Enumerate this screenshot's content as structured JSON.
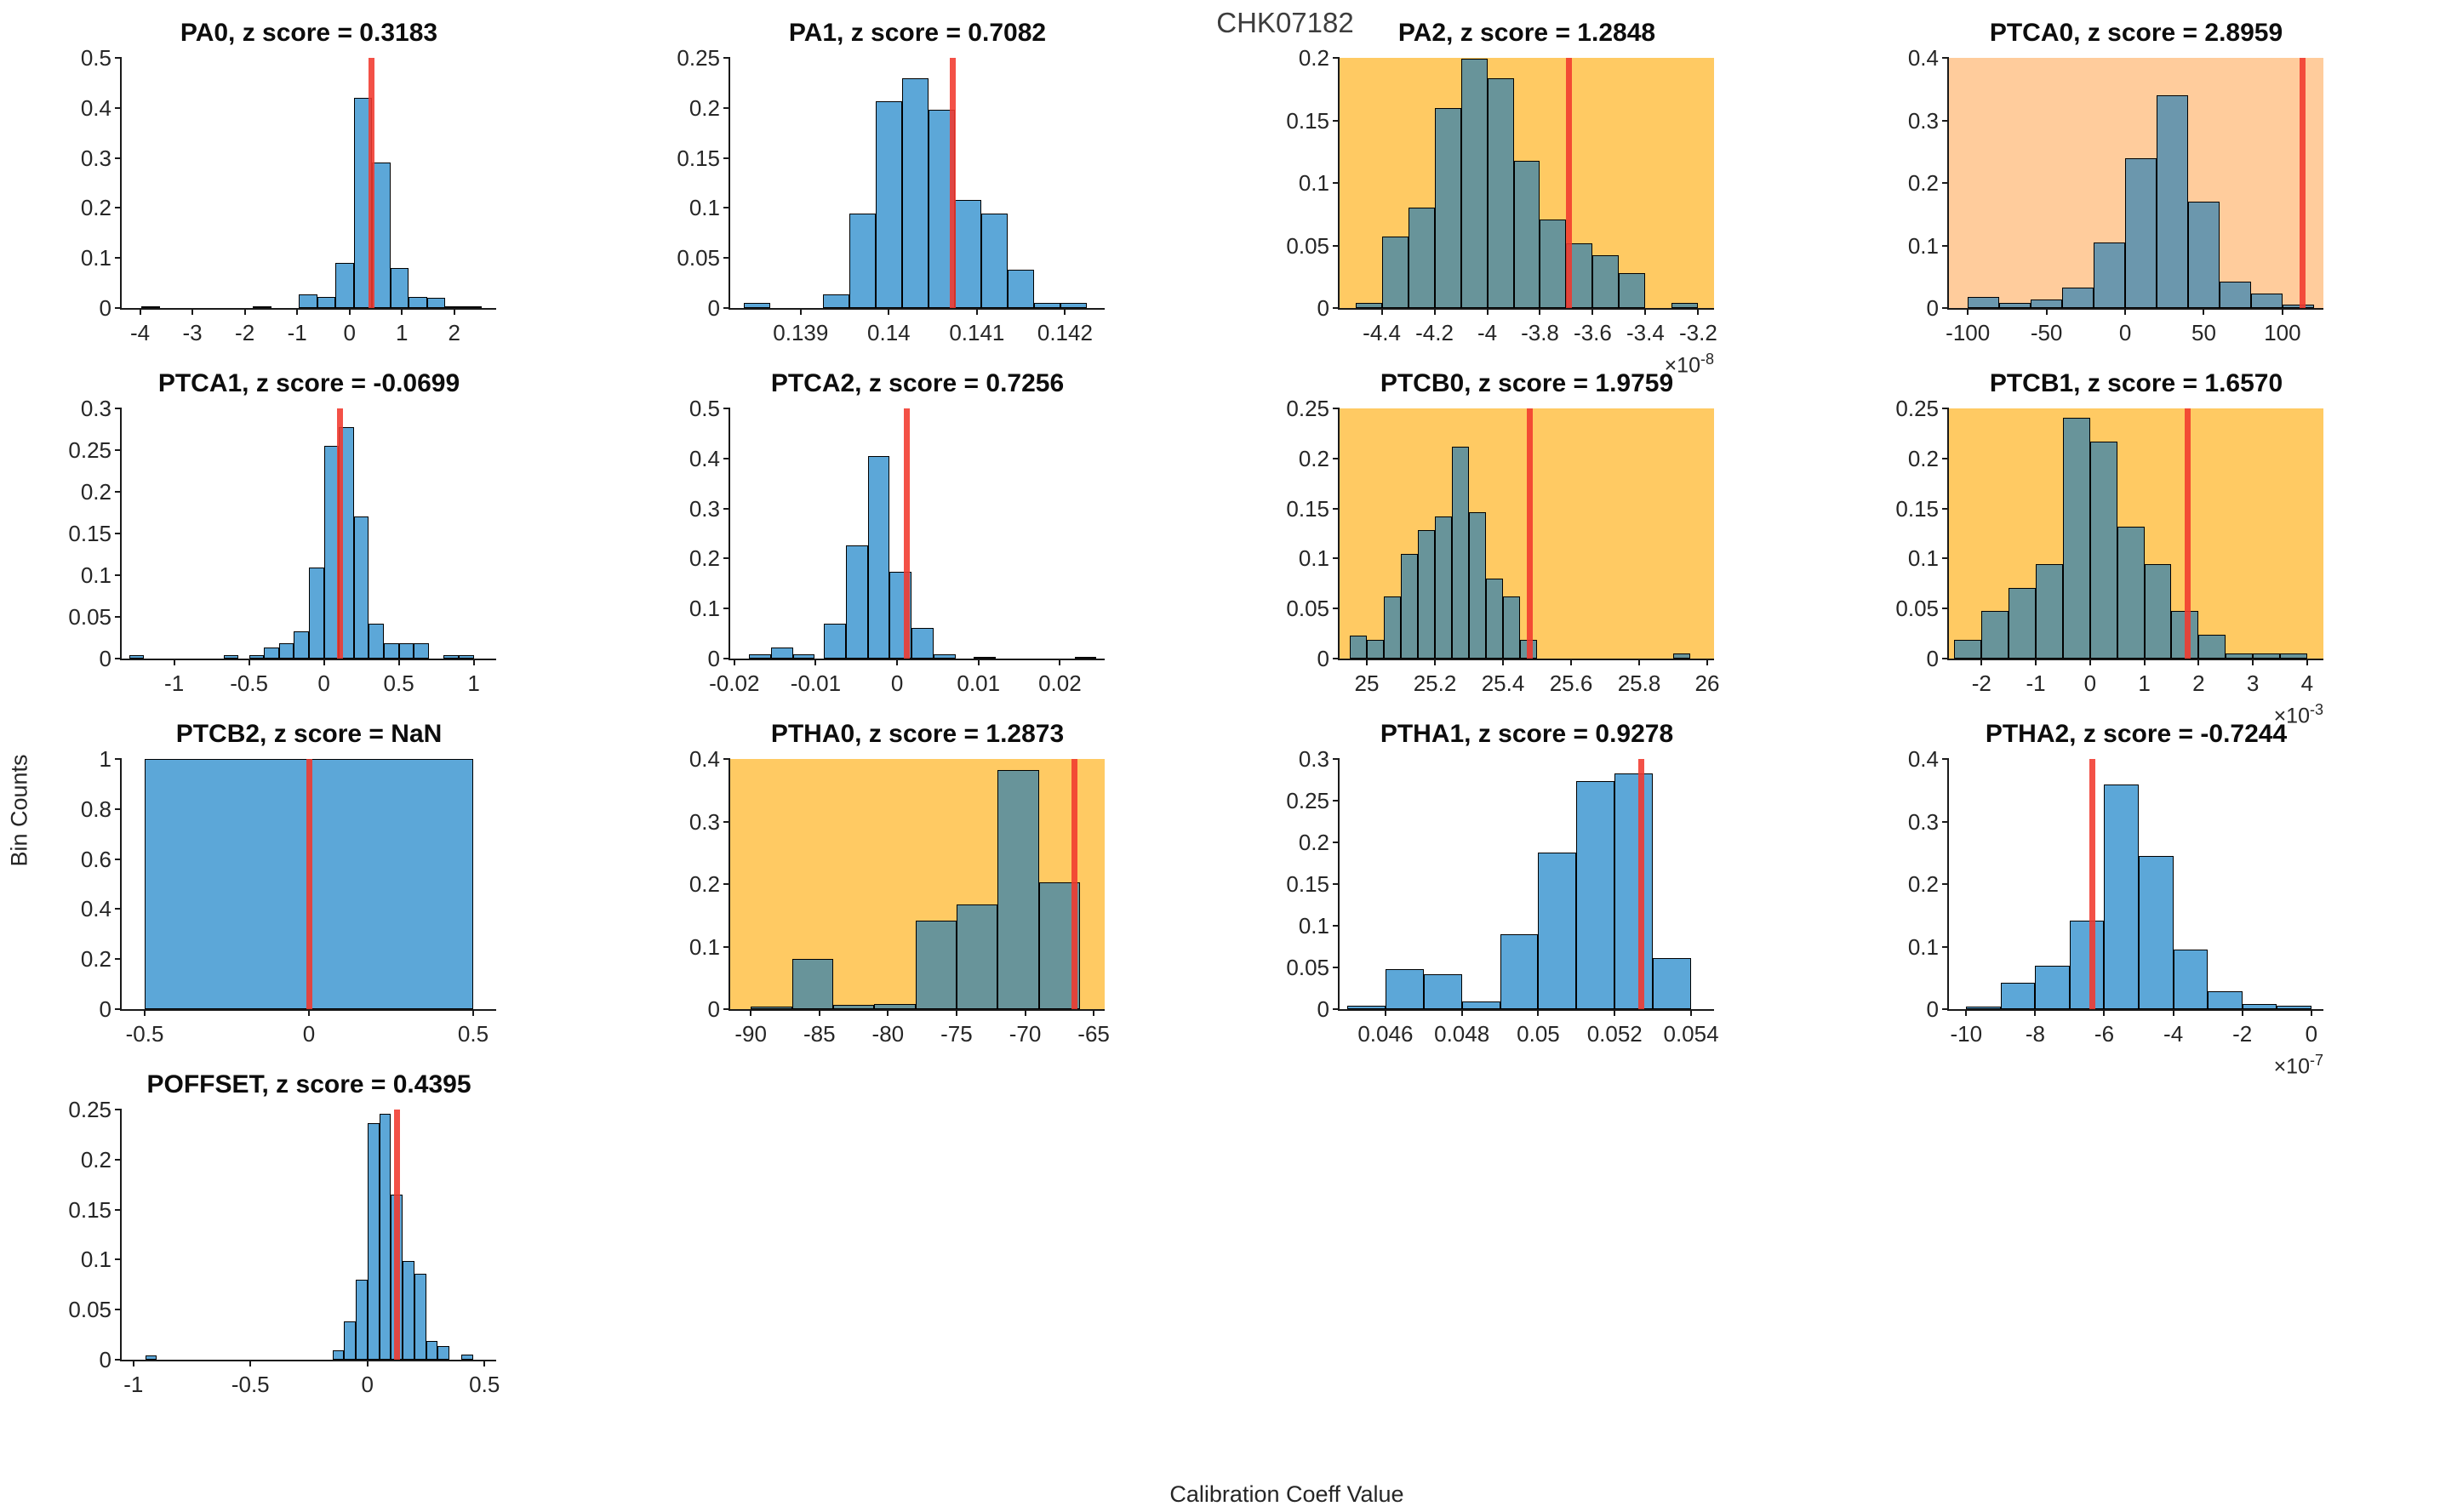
{
  "figure": {
    "suptitle": "CHK07182",
    "ylabel": "Bin Counts",
    "xlabel": "Calibration Coeff Value"
  },
  "colors": {
    "bar_blue": "#5CA7D8",
    "bar_on_yellow": "#68949A",
    "bar_on_peach": "#6B97AD",
    "bg_yellow": "#FFCA63",
    "bg_peach": "#FFCC9C",
    "red_line": "#F1392D",
    "spine": "#1A1A1A",
    "tick_text": "#262626"
  },
  "chart_data": [
    {
      "type": "histogram",
      "name": "PA0",
      "title": "PA0, z score = 0.3183",
      "z_score": "0.3183",
      "highlight": "none",
      "xlim": [
        -4.35,
        2.8
      ],
      "ylim": [
        0,
        0.5
      ],
      "xtick_vals": [
        -4,
        -3,
        -2,
        -1,
        0,
        1,
        2
      ],
      "xtick_labels": [
        "-4",
        "-3",
        "-2",
        "-1",
        "0",
        "1",
        "2"
      ],
      "ytick_vals": [
        0,
        0.1,
        0.2,
        0.3,
        0.4,
        0.5
      ],
      "ytick_labels": [
        "0",
        "0.1",
        "0.2",
        "0.3",
        "0.4",
        "0.5"
      ],
      "exp": "",
      "red_x": 0.42,
      "bars": [
        [
          -3.98,
          0.36,
          0.004
        ],
        [
          -1.85,
          0.36,
          0.004
        ],
        [
          -0.97,
          0.35,
          0.028
        ],
        [
          -0.62,
          0.35,
          0.022
        ],
        [
          -0.27,
          0.35,
          0.09
        ],
        [
          0.08,
          0.35,
          0.42
        ],
        [
          0.43,
          0.35,
          0.29
        ],
        [
          0.78,
          0.35,
          0.08
        ],
        [
          1.13,
          0.35,
          0.022
        ],
        [
          1.48,
          0.35,
          0.02
        ],
        [
          1.83,
          0.35,
          0.004
        ],
        [
          2.18,
          0.35,
          0.004
        ]
      ]
    },
    {
      "type": "histogram",
      "name": "PA1",
      "title": "PA1, z score = 0.7082",
      "z_score": "0.7082",
      "highlight": "none",
      "xlim": [
        0.1382,
        0.14245
      ],
      "ylim": [
        0,
        0.25
      ],
      "xtick_vals": [
        0.139,
        0.14,
        0.141,
        0.142
      ],
      "xtick_labels": [
        "0.139",
        "0.14",
        "0.141",
        "0.142"
      ],
      "ytick_vals": [
        0,
        0.05,
        0.1,
        0.15,
        0.2,
        0.25
      ],
      "ytick_labels": [
        "0",
        "0.05",
        "0.1",
        "0.15",
        "0.2",
        "0.25"
      ],
      "exp": "",
      "red_x": 0.14073,
      "bars": [
        [
          0.13835,
          0.0003,
          0.005
        ],
        [
          0.13925,
          0.0003,
          0.014
        ],
        [
          0.13955,
          0.0003,
          0.094
        ],
        [
          0.13985,
          0.0003,
          0.207
        ],
        [
          0.14015,
          0.0003,
          0.23
        ],
        [
          0.14045,
          0.0003,
          0.198
        ],
        [
          0.14075,
          0.0003,
          0.108
        ],
        [
          0.14105,
          0.0003,
          0.094
        ],
        [
          0.14135,
          0.0003,
          0.038
        ],
        [
          0.14165,
          0.0003,
          0.005
        ],
        [
          0.14195,
          0.0003,
          0.005
        ]
      ]
    },
    {
      "type": "histogram",
      "name": "PA2",
      "title": "PA2, z score = 1.2848",
      "z_score": "1.2848",
      "highlight": "yellow",
      "xlim": [
        -4.56,
        -3.14
      ],
      "ylim": [
        0,
        0.2
      ],
      "xtick_vals": [
        -4.4,
        -4.2,
        -4,
        -3.8,
        -3.6,
        -3.4,
        -3.2
      ],
      "xtick_labels": [
        "-4.4",
        "-4.2",
        "-4",
        "-3.8",
        "-3.6",
        "-3.4",
        "-3.2"
      ],
      "ytick_vals": [
        0,
        0.05,
        0.1,
        0.15,
        0.2
      ],
      "ytick_labels": [
        "0",
        "0.05",
        "0.1",
        "0.15",
        "0.2"
      ],
      "exp": "-8",
      "red_x": -3.69,
      "bars": [
        [
          -4.5,
          0.1,
          0.004
        ],
        [
          -4.4,
          0.1,
          0.057
        ],
        [
          -4.3,
          0.1,
          0.08
        ],
        [
          -4.2,
          0.1,
          0.16
        ],
        [
          -4.1,
          0.1,
          0.199
        ],
        [
          -4.0,
          0.1,
          0.184
        ],
        [
          -3.9,
          0.1,
          0.118
        ],
        [
          -3.8,
          0.1,
          0.071
        ],
        [
          -3.7,
          0.1,
          0.052
        ],
        [
          -3.6,
          0.1,
          0.042
        ],
        [
          -3.5,
          0.1,
          0.028
        ],
        [
          -3.3,
          0.1,
          0.004
        ]
      ]
    },
    {
      "type": "histogram",
      "name": "PTCA0",
      "title": "PTCA0, z score = 2.8959",
      "z_score": "2.8959",
      "highlight": "peach",
      "xlim": [
        -112,
        126
      ],
      "ylim": [
        0,
        0.4
      ],
      "xtick_vals": [
        -100,
        -50,
        0,
        50,
        100
      ],
      "xtick_labels": [
        "-100",
        "-50",
        "0",
        "50",
        "100"
      ],
      "ytick_vals": [
        0,
        0.1,
        0.2,
        0.3,
        0.4
      ],
      "ytick_labels": [
        "0",
        "0.1",
        "0.2",
        "0.3",
        "0.4"
      ],
      "exp": "",
      "red_x": 113,
      "bars": [
        [
          -100,
          20,
          0.018
        ],
        [
          -80,
          20,
          0.008
        ],
        [
          -60,
          20,
          0.013
        ],
        [
          -40,
          20,
          0.032
        ],
        [
          -20,
          20,
          0.105
        ],
        [
          0,
          20,
          0.24
        ],
        [
          20,
          20,
          0.34
        ],
        [
          40,
          20,
          0.17
        ],
        [
          60,
          20,
          0.042
        ],
        [
          80,
          20,
          0.023
        ],
        [
          100,
          20,
          0.005
        ]
      ]
    },
    {
      "type": "histogram",
      "name": "PTCA1",
      "title": "PTCA1, z score = -0.0699",
      "z_score": "-0.0699",
      "highlight": "none",
      "xlim": [
        -1.35,
        1.15
      ],
      "ylim": [
        0,
        0.3
      ],
      "xtick_vals": [
        -1,
        -0.5,
        0,
        0.5,
        1
      ],
      "xtick_labels": [
        "-1",
        "-0.5",
        "0",
        "0.5",
        "1"
      ],
      "ytick_vals": [
        0,
        0.05,
        0.1,
        0.15,
        0.2,
        0.25,
        0.3
      ],
      "ytick_labels": [
        "0",
        "0.05",
        "0.1",
        "0.15",
        "0.2",
        "0.25",
        "0.3"
      ],
      "exp": "",
      "red_x": 0.105,
      "bars": [
        [
          -1.3,
          0.1,
          0.004
        ],
        [
          -0.67,
          0.1,
          0.004
        ],
        [
          -0.5,
          0.1,
          0.004
        ],
        [
          -0.4,
          0.1,
          0.013
        ],
        [
          -0.3,
          0.1,
          0.018
        ],
        [
          -0.2,
          0.1,
          0.033
        ],
        [
          -0.1,
          0.1,
          0.109
        ],
        [
          0,
          0.1,
          0.255
        ],
        [
          0.1,
          0.1,
          0.278
        ],
        [
          0.2,
          0.1,
          0.17
        ],
        [
          0.3,
          0.1,
          0.042
        ],
        [
          0.4,
          0.1,
          0.018
        ],
        [
          0.5,
          0.1,
          0.018
        ],
        [
          0.6,
          0.1,
          0.018
        ],
        [
          0.8,
          0.1,
          0.004
        ],
        [
          0.9,
          0.1,
          0.004
        ]
      ]
    },
    {
      "type": "histogram",
      "name": "PTCA2",
      "title": "PTCA2, z score = 0.7256",
      "z_score": "0.7256",
      "highlight": "none",
      "xlim": [
        -0.0205,
        0.0255
      ],
      "ylim": [
        0,
        0.5
      ],
      "xtick_vals": [
        -0.02,
        -0.01,
        0,
        0.01,
        0.02
      ],
      "xtick_labels": [
        "-0.02",
        "-0.01",
        "0",
        "0.01",
        "0.02"
      ],
      "ytick_vals": [
        0,
        0.1,
        0.2,
        0.3,
        0.4,
        0.5
      ],
      "ytick_labels": [
        "0",
        "0.1",
        "0.2",
        "0.3",
        "0.4",
        "0.5"
      ],
      "exp": "",
      "red_x": 0.0012,
      "bars": [
        [
          -0.0182,
          0.0027,
          0.008
        ],
        [
          -0.0155,
          0.0027,
          0.022
        ],
        [
          -0.0128,
          0.0027,
          0.008
        ],
        [
          -0.009,
          0.0027,
          0.07
        ],
        [
          -0.0063,
          0.0027,
          0.227
        ],
        [
          -0.0036,
          0.0027,
          0.405
        ],
        [
          -0.0009,
          0.0027,
          0.173
        ],
        [
          0.0018,
          0.0027,
          0.062
        ],
        [
          0.0045,
          0.0027,
          0.008
        ],
        [
          0.0094,
          0.0027,
          0.004
        ],
        [
          0.0218,
          0.0027,
          0.004
        ]
      ]
    },
    {
      "type": "histogram",
      "name": "PTCB0",
      "title": "PTCB0, z score = 1.9759",
      "z_score": "1.9759",
      "highlight": "yellow",
      "xlim": [
        24.92,
        26.02
      ],
      "ylim": [
        0,
        0.25
      ],
      "xtick_vals": [
        25,
        25.2,
        25.4,
        25.6,
        25.8,
        26
      ],
      "xtick_labels": [
        "25",
        "25.2",
        "25.4",
        "25.6",
        "25.8",
        "26"
      ],
      "ytick_vals": [
        0,
        0.05,
        0.1,
        0.15,
        0.2,
        0.25
      ],
      "ytick_labels": [
        "0",
        "0.05",
        "0.1",
        "0.15",
        "0.2",
        "0.25"
      ],
      "exp": "",
      "red_x": 25.478,
      "bars": [
        [
          24.95,
          0.05,
          0.023
        ],
        [
          25.0,
          0.05,
          0.019
        ],
        [
          25.05,
          0.05,
          0.062
        ],
        [
          25.1,
          0.05,
          0.105
        ],
        [
          25.15,
          0.05,
          0.128
        ],
        [
          25.2,
          0.05,
          0.142
        ],
        [
          25.25,
          0.05,
          0.212
        ],
        [
          25.3,
          0.05,
          0.146
        ],
        [
          25.35,
          0.05,
          0.08
        ],
        [
          25.4,
          0.05,
          0.062
        ],
        [
          25.45,
          0.05,
          0.019
        ],
        [
          25.9,
          0.05,
          0.005
        ]
      ]
    },
    {
      "type": "histogram",
      "name": "PTCB1",
      "title": "PTCB1, z score = 1.6570",
      "z_score": "1.6570",
      "highlight": "yellow",
      "xlim": [
        -2.6,
        4.3
      ],
      "ylim": [
        0,
        0.25
      ],
      "xtick_vals": [
        -2,
        -1,
        0,
        1,
        2,
        3,
        4
      ],
      "xtick_labels": [
        "-2",
        "-1",
        "0",
        "1",
        "2",
        "3",
        "4"
      ],
      "ytick_vals": [
        0,
        0.05,
        0.1,
        0.15,
        0.2,
        0.25
      ],
      "ytick_labels": [
        "0",
        "0.05",
        "0.1",
        "0.15",
        "0.2",
        "0.25"
      ],
      "exp": "-3",
      "red_x": 1.8,
      "bars": [
        [
          -2.5,
          0.5,
          0.019
        ],
        [
          -2,
          0.5,
          0.048
        ],
        [
          -1.5,
          0.5,
          0.071
        ],
        [
          -1,
          0.5,
          0.094
        ],
        [
          -0.5,
          0.5,
          0.241
        ],
        [
          0,
          0.5,
          0.217
        ],
        [
          0.5,
          0.5,
          0.132
        ],
        [
          1,
          0.5,
          0.094
        ],
        [
          1.5,
          0.5,
          0.048
        ],
        [
          2,
          0.5,
          0.024
        ],
        [
          2.5,
          0.5,
          0.005
        ],
        [
          3,
          0.5,
          0.005
        ],
        [
          3.5,
          0.5,
          0.005
        ]
      ]
    },
    {
      "type": "histogram",
      "name": "PTCB2",
      "title": "PTCB2, z score = NaN",
      "z_score": "NaN",
      "highlight": "none",
      "xlim": [
        -0.57,
        0.57
      ],
      "ylim": [
        0,
        1
      ],
      "xtick_vals": [
        -0.5,
        0,
        0.5
      ],
      "xtick_labels": [
        "-0.5",
        "0",
        "0.5"
      ],
      "ytick_vals": [
        0,
        0.2,
        0.4,
        0.6,
        0.8,
        1
      ],
      "ytick_labels": [
        "0",
        "0.2",
        "0.4",
        "0.6",
        "0.8",
        "1"
      ],
      "exp": "",
      "red_x": 0,
      "bars": [
        [
          -0.5,
          1,
          1
        ]
      ]
    },
    {
      "type": "histogram",
      "name": "PTHA0",
      "title": "PTHA0, z score = 1.2873",
      "z_score": "1.2873",
      "highlight": "yellow",
      "xlim": [
        -91.5,
        -64.2
      ],
      "ylim": [
        0,
        0.4
      ],
      "xtick_vals": [
        -90,
        -85,
        -80,
        -75,
        -70,
        -65
      ],
      "xtick_labels": [
        "-90",
        "-85",
        "-80",
        "-75",
        "-70",
        "-65"
      ],
      "ytick_vals": [
        0,
        0.1,
        0.2,
        0.3,
        0.4
      ],
      "ytick_labels": [
        "0",
        "0.1",
        "0.2",
        "0.3",
        "0.4"
      ],
      "exp": "",
      "red_x": -66.4,
      "bars": [
        [
          -90,
          3,
          0.004
        ],
        [
          -87,
          3,
          0.08
        ],
        [
          -84,
          3,
          0.007
        ],
        [
          -81,
          3,
          0.008
        ],
        [
          -78,
          3,
          0.141
        ],
        [
          -75,
          3,
          0.168
        ],
        [
          -72,
          3,
          0.382
        ],
        [
          -69,
          3,
          0.203
        ]
      ]
    },
    {
      "type": "histogram",
      "name": "PTHA1",
      "title": "PTHA1, z score = 0.9278",
      "z_score": "0.9278",
      "highlight": "none",
      "xlim": [
        0.0448,
        0.0546
      ],
      "ylim": [
        0,
        0.3
      ],
      "xtick_vals": [
        0.046,
        0.048,
        0.05,
        0.052,
        0.054
      ],
      "xtick_labels": [
        "0.046",
        "0.048",
        "0.05",
        "0.052",
        "0.054"
      ],
      "ytick_vals": [
        0,
        0.05,
        0.1,
        0.15,
        0.2,
        0.25,
        0.3
      ],
      "ytick_labels": [
        "0",
        "0.05",
        "0.1",
        "0.15",
        "0.2",
        "0.25",
        "0.3"
      ],
      "exp": "",
      "red_x": 0.0527,
      "bars": [
        [
          0.045,
          0.001,
          0.004
        ],
        [
          0.046,
          0.001,
          0.048
        ],
        [
          0.047,
          0.001,
          0.042
        ],
        [
          0.048,
          0.001,
          0.009
        ],
        [
          0.049,
          0.001,
          0.09
        ],
        [
          0.05,
          0.001,
          0.188
        ],
        [
          0.051,
          0.001,
          0.273
        ],
        [
          0.052,
          0.001,
          0.283
        ],
        [
          0.053,
          0.001,
          0.061
        ]
      ]
    },
    {
      "type": "histogram",
      "name": "PTHA2",
      "title": "PTHA2, z score = -0.7244",
      "z_score": "-0.7244",
      "highlight": "none",
      "xlim": [
        -10.5,
        0.35
      ],
      "ylim": [
        0,
        0.4
      ],
      "xtick_vals": [
        -10,
        -8,
        -6,
        -4,
        -2,
        0
      ],
      "xtick_labels": [
        "-10",
        "-8",
        "-6",
        "-4",
        "-2",
        "0"
      ],
      "ytick_vals": [
        0,
        0.1,
        0.2,
        0.3,
        0.4
      ],
      "ytick_labels": [
        "0",
        "0.1",
        "0.2",
        "0.3",
        "0.4"
      ],
      "exp": "-7",
      "red_x": -6.35,
      "bars": [
        [
          -10,
          1,
          0.004
        ],
        [
          -9,
          1,
          0.042
        ],
        [
          -8,
          1,
          0.07
        ],
        [
          -7,
          1,
          0.141
        ],
        [
          -6,
          1,
          0.359
        ],
        [
          -5,
          1,
          0.245
        ],
        [
          -4,
          1,
          0.095
        ],
        [
          -3,
          1,
          0.028
        ],
        [
          -2,
          1,
          0.008
        ],
        [
          -1,
          1,
          0.005
        ]
      ]
    },
    {
      "type": "histogram",
      "name": "POFFSET",
      "title": "POFFSET, z score = 0.4395",
      "z_score": "0.4395",
      "highlight": "none",
      "xlim": [
        -1.05,
        0.55
      ],
      "ylim": [
        0,
        0.25
      ],
      "xtick_vals": [
        -1,
        -0.5,
        0,
        0.5
      ],
      "xtick_labels": [
        "-1",
        "-0.5",
        "0",
        "0.5"
      ],
      "ytick_vals": [
        0,
        0.05,
        0.1,
        0.15,
        0.2,
        0.25
      ],
      "ytick_labels": [
        "0",
        "0.05",
        "0.1",
        "0.15",
        "0.2",
        "0.25"
      ],
      "exp": "",
      "red_x": 0.125,
      "bars": [
        [
          -0.95,
          0.05,
          0.004
        ],
        [
          -0.15,
          0.05,
          0.009
        ],
        [
          -0.1,
          0.05,
          0.038
        ],
        [
          -0.05,
          0.05,
          0.08
        ],
        [
          0,
          0.05,
          0.236
        ],
        [
          0.05,
          0.05,
          0.246
        ],
        [
          0.1,
          0.05,
          0.165
        ],
        [
          0.15,
          0.05,
          0.099
        ],
        [
          0.2,
          0.05,
          0.086
        ],
        [
          0.25,
          0.05,
          0.019
        ],
        [
          0.3,
          0.05,
          0.014
        ],
        [
          0.4,
          0.05,
          0.005
        ]
      ]
    }
  ]
}
